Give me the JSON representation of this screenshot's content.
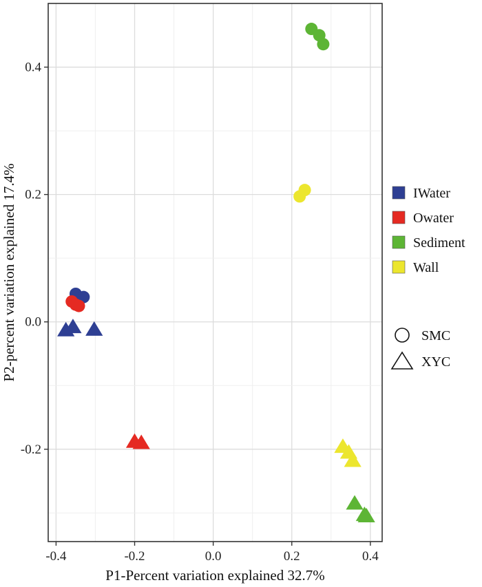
{
  "chart_data": {
    "type": "scatter",
    "title": "",
    "xlabel": "P1-Percent variation explained 32.7%",
    "ylabel": "P2-percent variation explained 17.4%",
    "xlim": [
      -0.42,
      0.43
    ],
    "ylim": [
      -0.345,
      0.5
    ],
    "x_ticks": [
      -0.4,
      -0.2,
      0.0,
      0.2,
      0.4
    ],
    "x_tick_labels": [
      "-0.4",
      "-0.2",
      "0.0",
      "0.2",
      "0.4"
    ],
    "y_ticks": [
      -0.2,
      0.0,
      0.2,
      0.4
    ],
    "y_tick_labels": [
      "-0.2",
      "0.0",
      "0.2",
      "0.4"
    ],
    "grid": true,
    "color_legend": [
      {
        "name": "IWater",
        "color": "#2E3F93"
      },
      {
        "name": "Owater",
        "color": "#E52A22"
      },
      {
        "name": "Sediment",
        "color": "#5DB535"
      },
      {
        "name": "Wall",
        "color": "#ECE62E"
      }
    ],
    "shape_legend": [
      {
        "name": "SMC",
        "shape": "circle"
      },
      {
        "name": "XYC",
        "shape": "triangle"
      }
    ],
    "series": [
      {
        "group": "IWater",
        "shape": "circle",
        "points": [
          [
            -0.35,
            0.044
          ],
          [
            -0.33,
            0.039
          ],
          [
            -0.345,
            0.034
          ]
        ]
      },
      {
        "group": "IWater",
        "shape": "triangle",
        "points": [
          [
            -0.375,
            -0.013
          ],
          [
            -0.357,
            -0.008
          ],
          [
            -0.303,
            -0.012
          ]
        ]
      },
      {
        "group": "Owater",
        "shape": "circle",
        "points": [
          [
            -0.36,
            0.032
          ],
          [
            -0.35,
            0.027
          ],
          [
            -0.342,
            0.025
          ]
        ]
      },
      {
        "group": "Owater",
        "shape": "triangle",
        "points": [
          [
            -0.2,
            -0.188
          ],
          [
            -0.183,
            -0.19
          ]
        ]
      },
      {
        "group": "Sediment",
        "shape": "circle",
        "points": [
          [
            0.25,
            0.46
          ],
          [
            0.27,
            0.45
          ],
          [
            0.28,
            0.436
          ]
        ]
      },
      {
        "group": "Sediment",
        "shape": "triangle",
        "points": [
          [
            0.36,
            -0.285
          ],
          [
            0.385,
            -0.303
          ],
          [
            0.39,
            -0.305
          ]
        ]
      },
      {
        "group": "Wall",
        "shape": "circle",
        "points": [
          [
            0.22,
            0.197
          ],
          [
            0.233,
            0.207
          ]
        ]
      },
      {
        "group": "Wall",
        "shape": "triangle",
        "points": [
          [
            0.33,
            -0.196
          ],
          [
            0.345,
            -0.205
          ],
          [
            0.355,
            -0.218
          ]
        ]
      }
    ]
  }
}
